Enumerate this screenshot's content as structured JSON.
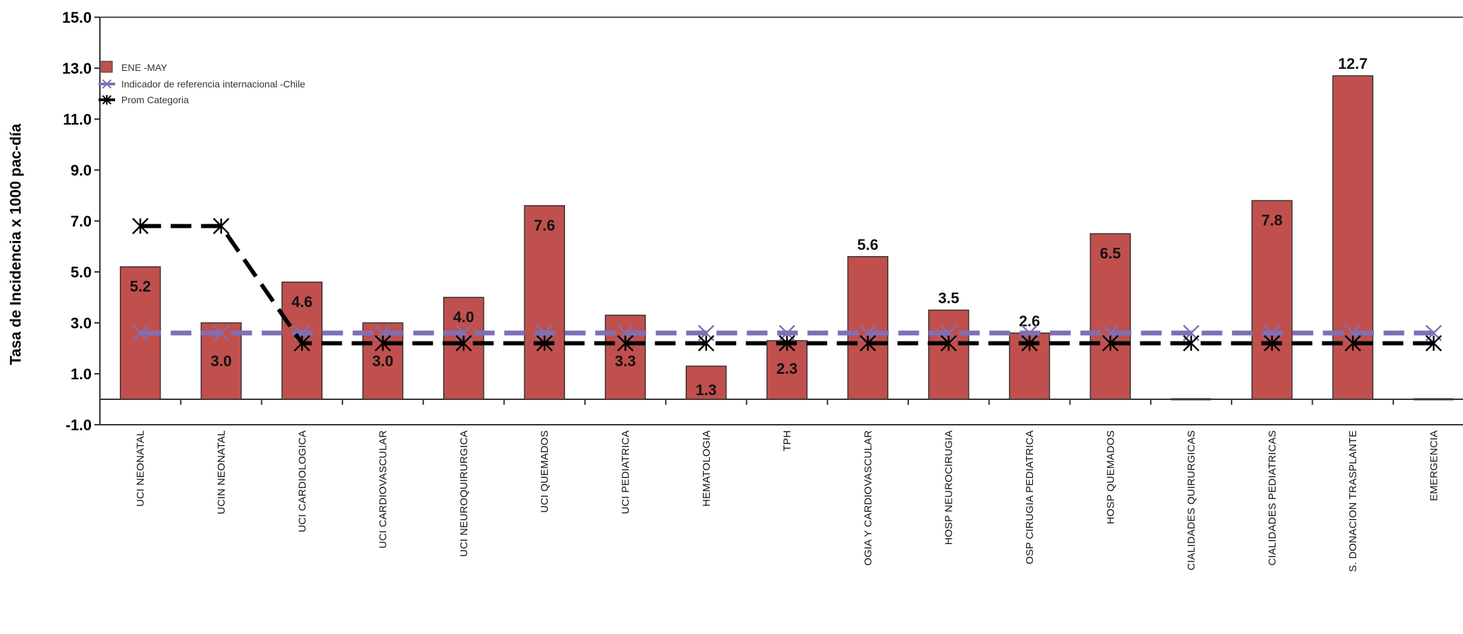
{
  "chart_data": {
    "type": "bar",
    "ylabel": "Tasa de Incidencia x 1000 pac-día",
    "xlabel": "",
    "ylim": [
      -1.0,
      15.0
    ],
    "yticks": [
      "15.0",
      "13.0",
      "11.0",
      "9.0",
      "7.0",
      "5.0",
      "3.0",
      "1.0",
      "-1.0"
    ],
    "categories": [
      "UCI NEONATAL",
      "UCIN  NEONATAL",
      "UCI CARDIOLOGICA",
      "UCI CARDIOVASCULAR",
      "UCI NEUROQUIRURGICA",
      "UCI QUEMADOS",
      "UCI PEDIATRICA",
      "HEMATOLOGIA",
      "TPH",
      "OGIA Y CARDIOVASCULAR",
      "HOSP NEUROCIRUGIA",
      "OSP CIRUGIA PEDIATRICA",
      "HOSP QUEMADOS",
      "CIALIDADES QUIRURGICAS",
      "CIALIDADES PEDIATRICAS",
      "S. DONACION TRASPLANTE",
      "EMERGENCIA"
    ],
    "series": [
      {
        "name": "ENE -MAY",
        "values": [
          5.2,
          3.0,
          4.6,
          3.0,
          4.0,
          7.6,
          3.3,
          1.3,
          2.3,
          5.6,
          3.5,
          2.6,
          6.5,
          0.0,
          7.8,
          12.7,
          0.0
        ],
        "labels": [
          "5.2",
          "3.0",
          "4.6",
          "3.0",
          "4.0",
          "7.6",
          "3.3",
          "1.3",
          "2.3",
          "5.6",
          "3.5",
          "2.6",
          "6.5",
          "",
          "7.8",
          "12.7",
          ""
        ],
        "color": "#c0504d"
      },
      {
        "name": "Indicador de referencia internacional -Chile",
        "values": [
          2.6,
          2.6,
          2.6,
          2.6,
          2.6,
          2.6,
          2.6,
          2.6,
          2.6,
          2.6,
          2.6,
          2.6,
          2.6,
          2.6,
          2.6,
          2.6,
          2.6
        ],
        "color": "#7f6fb5"
      },
      {
        "name": "Prom Categoria",
        "values": [
          6.8,
          6.8,
          2.2,
          2.2,
          2.2,
          2.2,
          2.2,
          2.2,
          2.2,
          2.2,
          2.2,
          2.2,
          2.2,
          2.2,
          2.2,
          2.2,
          2.2
        ],
        "color": "#000000"
      }
    ],
    "legend_position": "top-left",
    "grid": false
  }
}
